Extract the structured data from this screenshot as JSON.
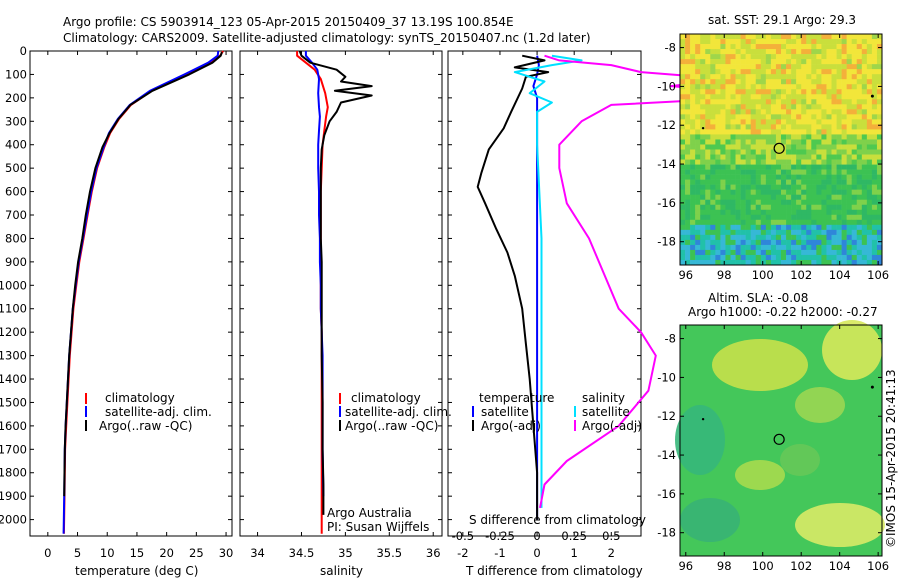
{
  "title_line1": "Argo profile: CS 5903914_123 05-Apr-2015 20150409_37 13.19S 100.854E",
  "title_line2": "Climatology: CARS2009. Satellite-adjusted climatology: synTS_20150407.nc (1.2d later)",
  "colors": {
    "climatology": "#ff0000",
    "satellite_adj": "#0000ff",
    "argo": "#000000",
    "salinity_satellite": "#00e0ff",
    "salinity_argo": "#ff00ff"
  },
  "depth_axis": {
    "ticks": [
      "0",
      "100",
      "200",
      "300",
      "400",
      "500",
      "600",
      "700",
      "800",
      "900",
      "1000",
      "1100",
      "1200",
      "1300",
      "1400",
      "1500",
      "1600",
      "1700",
      "1800",
      "1900",
      "2000"
    ],
    "range": [
      0,
      2070
    ]
  },
  "temperature_panel": {
    "xlabel": "temperature (deg C)",
    "xticks": [
      "0",
      "5",
      "10",
      "15",
      "20",
      "25",
      "30"
    ],
    "xlim": [
      -3,
      31
    ],
    "legend": [
      "climatology",
      "satellite-adj. clim.",
      "Argo(..raw -QC)"
    ]
  },
  "salinity_panel": {
    "xlabel": "salinity",
    "xticks": [
      "34",
      "34.5",
      "35",
      "35.5",
      "36"
    ],
    "xlim": [
      33.8,
      36.1
    ],
    "legend": [
      "climatology",
      "satellite-adj. clim.",
      "Argo(..raw -QC)"
    ],
    "note1": "Argo Australia",
    "note2": "PI: Susan Wijffels"
  },
  "difference_panel": {
    "xlabel": "T difference from climatology",
    "xlabel_top": "S difference from climatology",
    "xticks_T": [
      "-2",
      "-1",
      "0",
      "1",
      "2"
    ],
    "xticks_S": [
      "-0.5",
      "-0.25",
      "0",
      "0.25",
      "0.5"
    ],
    "xlim_T": [
      -2.4,
      2.8
    ],
    "legend_temperature_title": "temperature",
    "legend_salinity_title": "salinity",
    "legend_satellite": "satellite",
    "legend_argo": "Argo(-adj)"
  },
  "sst_map": {
    "title": "sat. SST: 29.1 Argo: 29.3",
    "xticks": [
      "96",
      "98",
      "100",
      "102",
      "104",
      "106"
    ],
    "yticks": [
      "-8",
      "-10",
      "-12",
      "-14",
      "-16",
      "-18"
    ],
    "xlim": [
      95.7,
      106.2
    ],
    "ylim": [
      -19.2,
      -7.3
    ],
    "profile_location": [
      100.854,
      -13.19
    ]
  },
  "sla_map": {
    "title_line1": "Altim. SLA: -0.08",
    "title_line2": "Argo h1000: -0.22 h2000: -0.27",
    "xticks": [
      "96",
      "98",
      "100",
      "102",
      "104",
      "106"
    ],
    "yticks": [
      "-8",
      "-10",
      "-12",
      "-14",
      "-16",
      "-18"
    ],
    "xlim": [
      95.7,
      106.2
    ],
    "ylim": [
      -19.2,
      -7.3
    ],
    "profile_location": [
      100.854,
      -13.19
    ]
  },
  "credit": "©IMOS 15-Apr-2015 20:41:13",
  "chart_data": [
    {
      "type": "line",
      "name": "temperature profile",
      "xlabel": "temperature (deg C)",
      "ylabel": "",
      "xlim": [
        -3,
        31
      ],
      "ylim": [
        2070,
        0
      ],
      "series": [
        {
          "name": "climatology",
          "x": [
            29.5,
            29.0,
            27.5,
            23.5,
            17.5,
            14.0,
            12.0,
            10.5,
            9.5,
            8.3,
            7.4,
            6.7,
            6.0,
            5.3,
            4.8,
            4.3,
            4.0,
            3.7,
            3.5,
            3.3,
            3.1,
            2.9,
            2.8,
            2.7
          ],
          "y": [
            0,
            20,
            50,
            100,
            170,
            230,
            290,
            350,
            410,
            500,
            600,
            700,
            800,
            900,
            1000,
            1100,
            1200,
            1300,
            1400,
            1500,
            1600,
            1700,
            1900,
            2060
          ]
        },
        {
          "name": "satellite-adj. clim.",
          "x": [
            28.7,
            28.6,
            27.0,
            23.0,
            17.2,
            13.8,
            11.8,
            10.3,
            9.4,
            8.2,
            7.3,
            6.6,
            5.9,
            5.2,
            4.7,
            4.2,
            3.9,
            3.6,
            3.4,
            3.2,
            3.0,
            2.85,
            2.75,
            2.65
          ],
          "y": [
            0,
            20,
            50,
            100,
            170,
            230,
            290,
            350,
            410,
            500,
            600,
            700,
            800,
            900,
            1000,
            1100,
            1200,
            1300,
            1400,
            1500,
            1600,
            1700,
            1900,
            2060
          ]
        },
        {
          "name": "Argo(..raw -QC)",
          "x": [
            29.3,
            29.1,
            27.7,
            23.8,
            17.6,
            13.9,
            11.9,
            10.4,
            9.2,
            8.0,
            7.1,
            6.4,
            5.8,
            5.1,
            4.6,
            4.2,
            3.9,
            3.6,
            3.4,
            3.2,
            3.0,
            2.85,
            2.75
          ],
          "y": [
            5,
            20,
            50,
            100,
            170,
            230,
            290,
            350,
            410,
            500,
            600,
            700,
            800,
            900,
            1000,
            1100,
            1200,
            1300,
            1400,
            1500,
            1600,
            1700,
            1900
          ]
        }
      ]
    },
    {
      "type": "line",
      "name": "salinity profile",
      "xlabel": "salinity",
      "ylabel": "",
      "xlim": [
        33.8,
        36.1
      ],
      "ylim": [
        2070,
        0
      ],
      "series": [
        {
          "name": "climatology",
          "x": [
            34.45,
            34.45,
            34.55,
            34.65,
            34.72,
            34.77,
            34.8,
            34.78,
            34.76,
            34.74,
            34.73,
            34.72,
            34.72,
            34.72,
            34.72,
            34.72,
            34.72,
            34.73,
            34.73,
            34.73,
            34.73,
            34.73,
            34.73,
            34.73
          ],
          "y": [
            0,
            20,
            50,
            80,
            120,
            180,
            240,
            280,
            340,
            400,
            500,
            600,
            700,
            800,
            900,
            1000,
            1100,
            1200,
            1300,
            1400,
            1500,
            1700,
            1900,
            2060
          ]
        },
        {
          "name": "satellite-adj. clim.",
          "x": [
            34.55,
            34.55,
            34.62,
            34.68,
            34.7,
            34.69,
            34.7,
            34.71,
            34.7,
            34.69,
            34.69,
            34.7,
            34.7,
            34.71,
            34.71,
            34.72,
            34.72,
            34.73,
            34.74,
            34.74,
            34.74,
            34.74,
            34.75
          ],
          "y": [
            0,
            20,
            50,
            80,
            120,
            180,
            240,
            280,
            340,
            400,
            500,
            600,
            700,
            800,
            900,
            1000,
            1100,
            1200,
            1300,
            1400,
            1500,
            1700,
            1900
          ]
        },
        {
          "name": "Argo(..raw -QC)",
          "x": [
            34.48,
            34.5,
            34.6,
            34.9,
            35.0,
            34.95,
            35.3,
            34.88,
            35.3,
            34.95,
            34.9,
            34.82,
            34.76,
            34.73,
            34.72,
            34.72,
            34.72,
            34.72,
            34.73,
            34.73,
            34.73,
            34.73,
            34.74,
            34.74,
            34.75,
            34.75
          ],
          "y": [
            0,
            20,
            50,
            80,
            110,
            130,
            150,
            170,
            190,
            220,
            260,
            300,
            360,
            420,
            500,
            600,
            700,
            800,
            900,
            1000,
            1100,
            1300,
            1500,
            1700,
            1850,
            1980
          ]
        }
      ]
    },
    {
      "type": "line",
      "name": "difference from climatology",
      "xlabel": "T difference from climatology",
      "ylabel": "",
      "xlim": [
        -2.4,
        2.8
      ],
      "ylim": [
        2070,
        0
      ],
      "series": [
        {
          "name": "temperature satellite",
          "x": [
            0.0,
            0.05,
            0.0,
            -0.1,
            0.0,
            0.0,
            0.0,
            0.0,
            0.0,
            0.0,
            0.0
          ],
          "y": [
            20,
            60,
            100,
            150,
            200,
            300,
            500,
            800,
            1200,
            1600,
            2000
          ]
        },
        {
          "name": "temperature Argo(-adj)",
          "x": [
            -0.4,
            0.2,
            -0.6,
            0.3,
            -0.3,
            -0.4,
            -0.7,
            -0.9,
            -1.3,
            -1.5,
            -1.6,
            -1.4,
            -1.1,
            -0.8,
            -0.6,
            -0.4,
            -0.3,
            -0.2,
            -0.1,
            0.0,
            0.0
          ],
          "y": [
            20,
            40,
            70,
            90,
            110,
            160,
            260,
            330,
            420,
            520,
            580,
            650,
            760,
            860,
            960,
            1100,
            1250,
            1400,
            1600,
            1800,
            2000
          ]
        },
        {
          "name": "salinity satellite",
          "x": [
            0.1,
            0.3,
            0.1,
            -0.15,
            0.05,
            -0.05,
            0.1,
            0.0,
            0.0,
            0.03,
            0.03,
            0.03
          ],
          "y": [
            20,
            40,
            60,
            90,
            130,
            180,
            220,
            260,
            400,
            800,
            1500,
            1950
          ]
        },
        {
          "name": "salinity Argo(-adj)",
          "x": [
            0.05,
            0.15,
            0.5,
            0.7,
            1.3,
            0.9,
            1.7,
            0.5,
            0.3,
            0.15,
            0.15,
            0.2,
            0.35,
            0.45,
            0.55,
            0.7,
            0.8,
            0.75,
            0.55,
            0.2,
            0.05,
            0.02
          ],
          "y": [
            20,
            40,
            60,
            90,
            120,
            150,
            190,
            230,
            300,
            400,
            500,
            650,
            800,
            950,
            1100,
            1200,
            1300,
            1450,
            1600,
            1750,
            1850,
            1950
          ]
        }
      ]
    }
  ]
}
